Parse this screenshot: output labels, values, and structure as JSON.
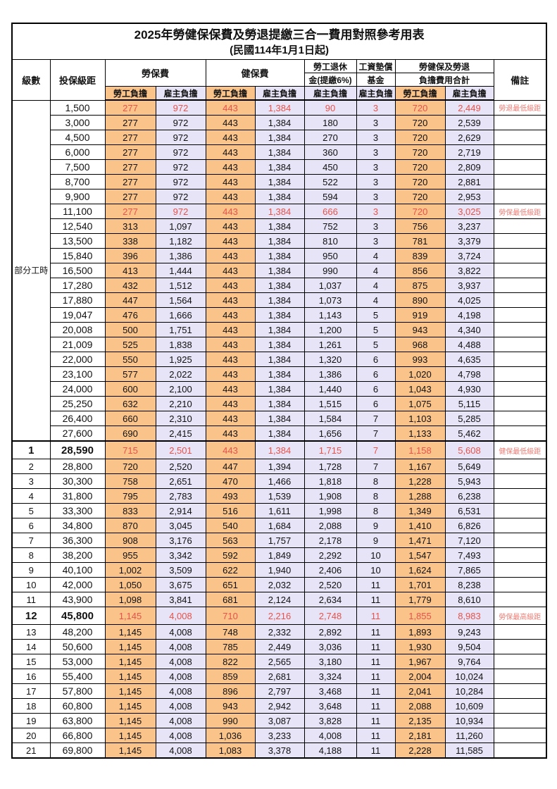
{
  "title": {
    "main": "2025年勞健保保費及勞退提繳三合一費用對照參考用表",
    "sub": "(民國114年1月1日起)"
  },
  "header": {
    "level": "級數",
    "bracket": "投保級距",
    "labor": "勞保費",
    "health": "健保費",
    "pension_l1": "勞工退休",
    "pension_l2": "金(提繳6%)",
    "fund_l1": "工資墊償",
    "fund_l2": "基金",
    "total_l1": "勞健保及勞退",
    "total_l2": "負擔費用合計",
    "note": "備註",
    "employee": "勞工負擔",
    "employer": "雇主負擔"
  },
  "part_time": {
    "label": "部分工時",
    "span": 23
  },
  "colors": {
    "employee_bg": "#F9C38A",
    "employer_bg": "#E6E4F6",
    "value_red": "#E8534B",
    "note_red": "#EF7B73"
  },
  "rows": [
    {
      "level": "",
      "bracket": "1,500",
      "labor_emp": "277",
      "labor_er": "972",
      "health_emp": "443",
      "health_er": "1,384",
      "pension": "90",
      "fund": "3",
      "total_emp": "720",
      "total_er": "2,449",
      "note": "勞退最低級距",
      "red": true
    },
    {
      "level": "",
      "bracket": "3,000",
      "labor_emp": "277",
      "labor_er": "972",
      "health_emp": "443",
      "health_er": "1,384",
      "pension": "180",
      "fund": "3",
      "total_emp": "720",
      "total_er": "2,539",
      "note": ""
    },
    {
      "level": "",
      "bracket": "4,500",
      "labor_emp": "277",
      "labor_er": "972",
      "health_emp": "443",
      "health_er": "1,384",
      "pension": "270",
      "fund": "3",
      "total_emp": "720",
      "total_er": "2,629",
      "note": ""
    },
    {
      "level": "",
      "bracket": "6,000",
      "labor_emp": "277",
      "labor_er": "972",
      "health_emp": "443",
      "health_er": "1,384",
      "pension": "360",
      "fund": "3",
      "total_emp": "720",
      "total_er": "2,719",
      "note": ""
    },
    {
      "level": "",
      "bracket": "7,500",
      "labor_emp": "277",
      "labor_er": "972",
      "health_emp": "443",
      "health_er": "1,384",
      "pension": "450",
      "fund": "3",
      "total_emp": "720",
      "total_er": "2,809",
      "note": ""
    },
    {
      "level": "",
      "bracket": "8,700",
      "labor_emp": "277",
      "labor_er": "972",
      "health_emp": "443",
      "health_er": "1,384",
      "pension": "522",
      "fund": "3",
      "total_emp": "720",
      "total_er": "2,881",
      "note": ""
    },
    {
      "level": "",
      "bracket": "9,900",
      "labor_emp": "277",
      "labor_er": "972",
      "health_emp": "443",
      "health_er": "1,384",
      "pension": "594",
      "fund": "3",
      "total_emp": "720",
      "total_er": "2,953",
      "note": ""
    },
    {
      "level": "",
      "bracket": "11,100",
      "labor_emp": "277",
      "labor_er": "972",
      "health_emp": "443",
      "health_er": "1,384",
      "pension": "666",
      "fund": "3",
      "total_emp": "720",
      "total_er": "3,025",
      "note": "勞保最低級距",
      "red": true
    },
    {
      "level": "",
      "bracket": "12,540",
      "labor_emp": "313",
      "labor_er": "1,097",
      "health_emp": "443",
      "health_er": "1,384",
      "pension": "752",
      "fund": "3",
      "total_emp": "756",
      "total_er": "3,237",
      "note": ""
    },
    {
      "level": "",
      "bracket": "13,500",
      "labor_emp": "338",
      "labor_er": "1,182",
      "health_emp": "443",
      "health_er": "1,384",
      "pension": "810",
      "fund": "3",
      "total_emp": "781",
      "total_er": "3,379",
      "note": ""
    },
    {
      "level": "",
      "bracket": "15,840",
      "labor_emp": "396",
      "labor_er": "1,386",
      "health_emp": "443",
      "health_er": "1,384",
      "pension": "950",
      "fund": "4",
      "total_emp": "839",
      "total_er": "3,724",
      "note": ""
    },
    {
      "level": "",
      "bracket": "16,500",
      "labor_emp": "413",
      "labor_er": "1,444",
      "health_emp": "443",
      "health_er": "1,384",
      "pension": "990",
      "fund": "4",
      "total_emp": "856",
      "total_er": "3,822",
      "note": ""
    },
    {
      "level": "",
      "bracket": "17,280",
      "labor_emp": "432",
      "labor_er": "1,512",
      "health_emp": "443",
      "health_er": "1,384",
      "pension": "1,037",
      "fund": "4",
      "total_emp": "875",
      "total_er": "3,937",
      "note": ""
    },
    {
      "level": "",
      "bracket": "17,880",
      "labor_emp": "447",
      "labor_er": "1,564",
      "health_emp": "443",
      "health_er": "1,384",
      "pension": "1,073",
      "fund": "4",
      "total_emp": "890",
      "total_er": "4,025",
      "note": ""
    },
    {
      "level": "",
      "bracket": "19,047",
      "labor_emp": "476",
      "labor_er": "1,666",
      "health_emp": "443",
      "health_er": "1,384",
      "pension": "1,143",
      "fund": "5",
      "total_emp": "919",
      "total_er": "4,198",
      "note": ""
    },
    {
      "level": "",
      "bracket": "20,008",
      "labor_emp": "500",
      "labor_er": "1,751",
      "health_emp": "443",
      "health_er": "1,384",
      "pension": "1,200",
      "fund": "5",
      "total_emp": "943",
      "total_er": "4,340",
      "note": ""
    },
    {
      "level": "",
      "bracket": "21,009",
      "labor_emp": "525",
      "labor_er": "1,838",
      "health_emp": "443",
      "health_er": "1,384",
      "pension": "1,261",
      "fund": "5",
      "total_emp": "968",
      "total_er": "4,488",
      "note": ""
    },
    {
      "level": "",
      "bracket": "22,000",
      "labor_emp": "550",
      "labor_er": "1,925",
      "health_emp": "443",
      "health_er": "1,384",
      "pension": "1,320",
      "fund": "6",
      "total_emp": "993",
      "total_er": "4,635",
      "note": ""
    },
    {
      "level": "",
      "bracket": "23,100",
      "labor_emp": "577",
      "labor_er": "2,022",
      "health_emp": "443",
      "health_er": "1,384",
      "pension": "1,386",
      "fund": "6",
      "total_emp": "1,020",
      "total_er": "4,798",
      "note": ""
    },
    {
      "level": "",
      "bracket": "24,000",
      "labor_emp": "600",
      "labor_er": "2,100",
      "health_emp": "443",
      "health_er": "1,384",
      "pension": "1,440",
      "fund": "6",
      "total_emp": "1,043",
      "total_er": "4,930",
      "note": ""
    },
    {
      "level": "",
      "bracket": "25,250",
      "labor_emp": "632",
      "labor_er": "2,210",
      "health_emp": "443",
      "health_er": "1,384",
      "pension": "1,515",
      "fund": "6",
      "total_emp": "1,075",
      "total_er": "5,115",
      "note": ""
    },
    {
      "level": "",
      "bracket": "26,400",
      "labor_emp": "660",
      "labor_er": "2,310",
      "health_emp": "443",
      "health_er": "1,384",
      "pension": "1,584",
      "fund": "7",
      "total_emp": "1,103",
      "total_er": "5,285",
      "note": ""
    },
    {
      "level": "",
      "bracket": "27,600",
      "labor_emp": "690",
      "labor_er": "2,415",
      "health_emp": "443",
      "health_er": "1,384",
      "pension": "1,656",
      "fund": "7",
      "total_emp": "1,133",
      "total_er": "5,462",
      "note": ""
    },
    {
      "level": "1",
      "bracket": "28,590",
      "labor_emp": "715",
      "labor_er": "2,501",
      "health_emp": "443",
      "health_er": "1,384",
      "pension": "1,715",
      "fund": "7",
      "total_emp": "1,158",
      "total_er": "5,608",
      "note": "健保最低級距",
      "red": true,
      "bold": true
    },
    {
      "level": "2",
      "bracket": "28,800",
      "labor_emp": "720",
      "labor_er": "2,520",
      "health_emp": "447",
      "health_er": "1,394",
      "pension": "1,728",
      "fund": "7",
      "total_emp": "1,167",
      "total_er": "5,649",
      "note": ""
    },
    {
      "level": "3",
      "bracket": "30,300",
      "labor_emp": "758",
      "labor_er": "2,651",
      "health_emp": "470",
      "health_er": "1,466",
      "pension": "1,818",
      "fund": "8",
      "total_emp": "1,228",
      "total_er": "5,943",
      "note": ""
    },
    {
      "level": "4",
      "bracket": "31,800",
      "labor_emp": "795",
      "labor_er": "2,783",
      "health_emp": "493",
      "health_er": "1,539",
      "pension": "1,908",
      "fund": "8",
      "total_emp": "1,288",
      "total_er": "6,238",
      "note": ""
    },
    {
      "level": "5",
      "bracket": "33,300",
      "labor_emp": "833",
      "labor_er": "2,914",
      "health_emp": "516",
      "health_er": "1,611",
      "pension": "1,998",
      "fund": "8",
      "total_emp": "1,349",
      "total_er": "6,531",
      "note": ""
    },
    {
      "level": "6",
      "bracket": "34,800",
      "labor_emp": "870",
      "labor_er": "3,045",
      "health_emp": "540",
      "health_er": "1,684",
      "pension": "2,088",
      "fund": "9",
      "total_emp": "1,410",
      "total_er": "6,826",
      "note": ""
    },
    {
      "level": "7",
      "bracket": "36,300",
      "labor_emp": "908",
      "labor_er": "3,176",
      "health_emp": "563",
      "health_er": "1,757",
      "pension": "2,178",
      "fund": "9",
      "total_emp": "1,471",
      "total_er": "7,120",
      "note": ""
    },
    {
      "level": "8",
      "bracket": "38,200",
      "labor_emp": "955",
      "labor_er": "3,342",
      "health_emp": "592",
      "health_er": "1,849",
      "pension": "2,292",
      "fund": "10",
      "total_emp": "1,547",
      "total_er": "7,493",
      "note": ""
    },
    {
      "level": "9",
      "bracket": "40,100",
      "labor_emp": "1,002",
      "labor_er": "3,509",
      "health_emp": "622",
      "health_er": "1,940",
      "pension": "2,406",
      "fund": "10",
      "total_emp": "1,624",
      "total_er": "7,865",
      "note": ""
    },
    {
      "level": "10",
      "bracket": "42,000",
      "labor_emp": "1,050",
      "labor_er": "3,675",
      "health_emp": "651",
      "health_er": "2,032",
      "pension": "2,520",
      "fund": "11",
      "total_emp": "1,701",
      "total_er": "8,238",
      "note": ""
    },
    {
      "level": "11",
      "bracket": "43,900",
      "labor_emp": "1,098",
      "labor_er": "3,841",
      "health_emp": "681",
      "health_er": "2,124",
      "pension": "2,634",
      "fund": "11",
      "total_emp": "1,779",
      "total_er": "8,610",
      "note": ""
    },
    {
      "level": "12",
      "bracket": "45,800",
      "labor_emp": "1,145",
      "labor_er": "4,008",
      "health_emp": "710",
      "health_er": "2,216",
      "pension": "2,748",
      "fund": "11",
      "total_emp": "1,855",
      "total_er": "8,983",
      "note": "勞保最高級距",
      "red": true,
      "bold": true
    },
    {
      "level": "13",
      "bracket": "48,200",
      "labor_emp": "1,145",
      "labor_er": "4,008",
      "health_emp": "748",
      "health_er": "2,332",
      "pension": "2,892",
      "fund": "11",
      "total_emp": "1,893",
      "total_er": "9,243",
      "note": ""
    },
    {
      "level": "14",
      "bracket": "50,600",
      "labor_emp": "1,145",
      "labor_er": "4,008",
      "health_emp": "785",
      "health_er": "2,449",
      "pension": "3,036",
      "fund": "11",
      "total_emp": "1,930",
      "total_er": "9,504",
      "note": ""
    },
    {
      "level": "15",
      "bracket": "53,000",
      "labor_emp": "1,145",
      "labor_er": "4,008",
      "health_emp": "822",
      "health_er": "2,565",
      "pension": "3,180",
      "fund": "11",
      "total_emp": "1,967",
      "total_er": "9,764",
      "note": ""
    },
    {
      "level": "16",
      "bracket": "55,400",
      "labor_emp": "1,145",
      "labor_er": "4,008",
      "health_emp": "859",
      "health_er": "2,681",
      "pension": "3,324",
      "fund": "11",
      "total_emp": "2,004",
      "total_er": "10,024",
      "note": ""
    },
    {
      "level": "17",
      "bracket": "57,800",
      "labor_emp": "1,145",
      "labor_er": "4,008",
      "health_emp": "896",
      "health_er": "2,797",
      "pension": "3,468",
      "fund": "11",
      "total_emp": "2,041",
      "total_er": "10,284",
      "note": ""
    },
    {
      "level": "18",
      "bracket": "60,800",
      "labor_emp": "1,145",
      "labor_er": "4,008",
      "health_emp": "943",
      "health_er": "2,942",
      "pension": "3,648",
      "fund": "11",
      "total_emp": "2,088",
      "total_er": "10,609",
      "note": ""
    },
    {
      "level": "19",
      "bracket": "63,800",
      "labor_emp": "1,145",
      "labor_er": "4,008",
      "health_emp": "990",
      "health_er": "3,087",
      "pension": "3,828",
      "fund": "11",
      "total_emp": "2,135",
      "total_er": "10,934",
      "note": ""
    },
    {
      "level": "20",
      "bracket": "66,800",
      "labor_emp": "1,145",
      "labor_er": "4,008",
      "health_emp": "1,036",
      "health_er": "3,233",
      "pension": "4,008",
      "fund": "11",
      "total_emp": "2,181",
      "total_er": "11,260",
      "note": ""
    },
    {
      "level": "21",
      "bracket": "69,800",
      "labor_emp": "1,145",
      "labor_er": "4,008",
      "health_emp": "1,083",
      "health_er": "3,378",
      "pension": "4,188",
      "fund": "11",
      "total_emp": "2,228",
      "total_er": "11,585",
      "note": ""
    }
  ]
}
